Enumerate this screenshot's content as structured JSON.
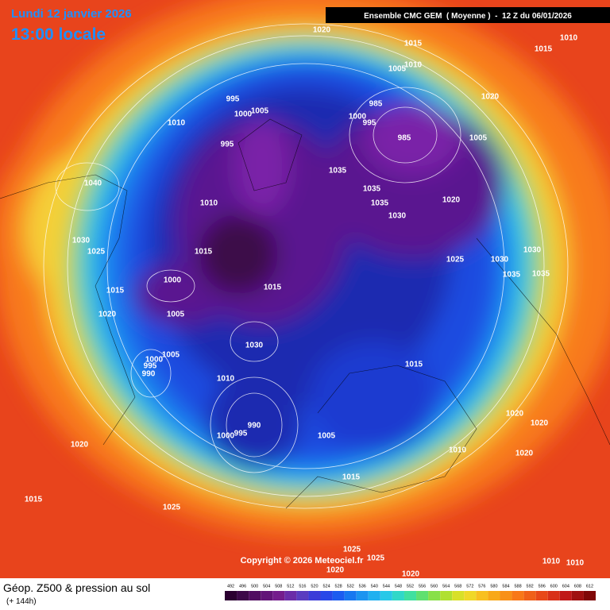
{
  "header": {
    "date": "Lundi 12 janvier 2026",
    "time": "13:00 locale",
    "model": "Ensemble CMC GEM  ( Moyenne )  -  12 Z du 06/01/2026"
  },
  "copyright": "Copyright © 2026 Meteociel.fr",
  "footer": {
    "title": "Géop. Z500 & pression au sol",
    "subtitle": "(+ 144h)"
  },
  "isobar_labels": [
    "1020",
    "1015",
    "1010",
    "1015",
    "1010",
    "1005",
    "1020",
    "985",
    "995",
    "1005",
    "1000",
    "1010",
    "1000",
    "995",
    "985",
    "1005",
    "995",
    "1035",
    "1040",
    "1035",
    "1035",
    "1020",
    "1010",
    "1030",
    "1030",
    "1025",
    "1015",
    "1025",
    "1030",
    "1030",
    "1035",
    "1035",
    "1000",
    "1015",
    "1015",
    "1005",
    "1020",
    "1030",
    "1005",
    "1000",
    "995",
    "990",
    "1015",
    "1010",
    "1020",
    "1020",
    "990",
    "995",
    "1000",
    "1005",
    "1010",
    "1020",
    "1020",
    "1015",
    "1015",
    "1025",
    "1025",
    "1025",
    "1020",
    "1020",
    "1010",
    "1010"
  ],
  "colorbar": {
    "levels": [
      492,
      496,
      500,
      504,
      508,
      512,
      516,
      520,
      524,
      528,
      532,
      536,
      540,
      544,
      548,
      552,
      556,
      560,
      564,
      568,
      572,
      576,
      580,
      584,
      588,
      592,
      596,
      600,
      604,
      608,
      612
    ],
    "colors": [
      "#2a0030",
      "#3c0848",
      "#500c60",
      "#621478",
      "#741c8c",
      "#6a2ca8",
      "#5a3cc0",
      "#3c3cd8",
      "#2848e8",
      "#1c5cf0",
      "#1878f0",
      "#1c94f0",
      "#20b0f0",
      "#28c8e8",
      "#30d8c8",
      "#40e0a0",
      "#60e070",
      "#88e048",
      "#b0e030",
      "#d8e028",
      "#f0d828",
      "#f8c020",
      "#f8a818",
      "#f89018",
      "#f87818",
      "#f06018",
      "#e84818",
      "#d83018",
      "#c01818",
      "#a01010",
      "#800808"
    ]
  }
}
